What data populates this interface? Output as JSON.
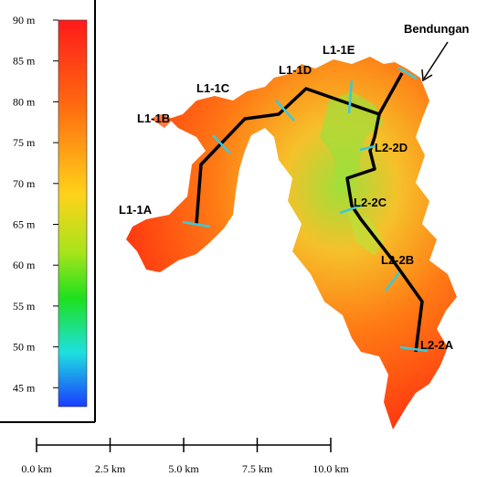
{
  "legend": {
    "labels": [
      "90 m",
      "85 m",
      "80 m",
      "75 m",
      "70 m",
      "65 m",
      "60 m",
      "55 m",
      "50 m",
      "45 m"
    ]
  },
  "scale_bar": {
    "labels": [
      "0.0 km",
      "2.5 km",
      "5.0 km",
      "7.5 km",
      "10.0 km"
    ]
  },
  "sections": [
    "L1-1A",
    "L1-1B",
    "L1-1C",
    "L1-1D",
    "L1-1E",
    "L2-2D",
    "L2-2C",
    "L2-2B",
    "L2-2A"
  ],
  "annotation": "Bendungan"
}
